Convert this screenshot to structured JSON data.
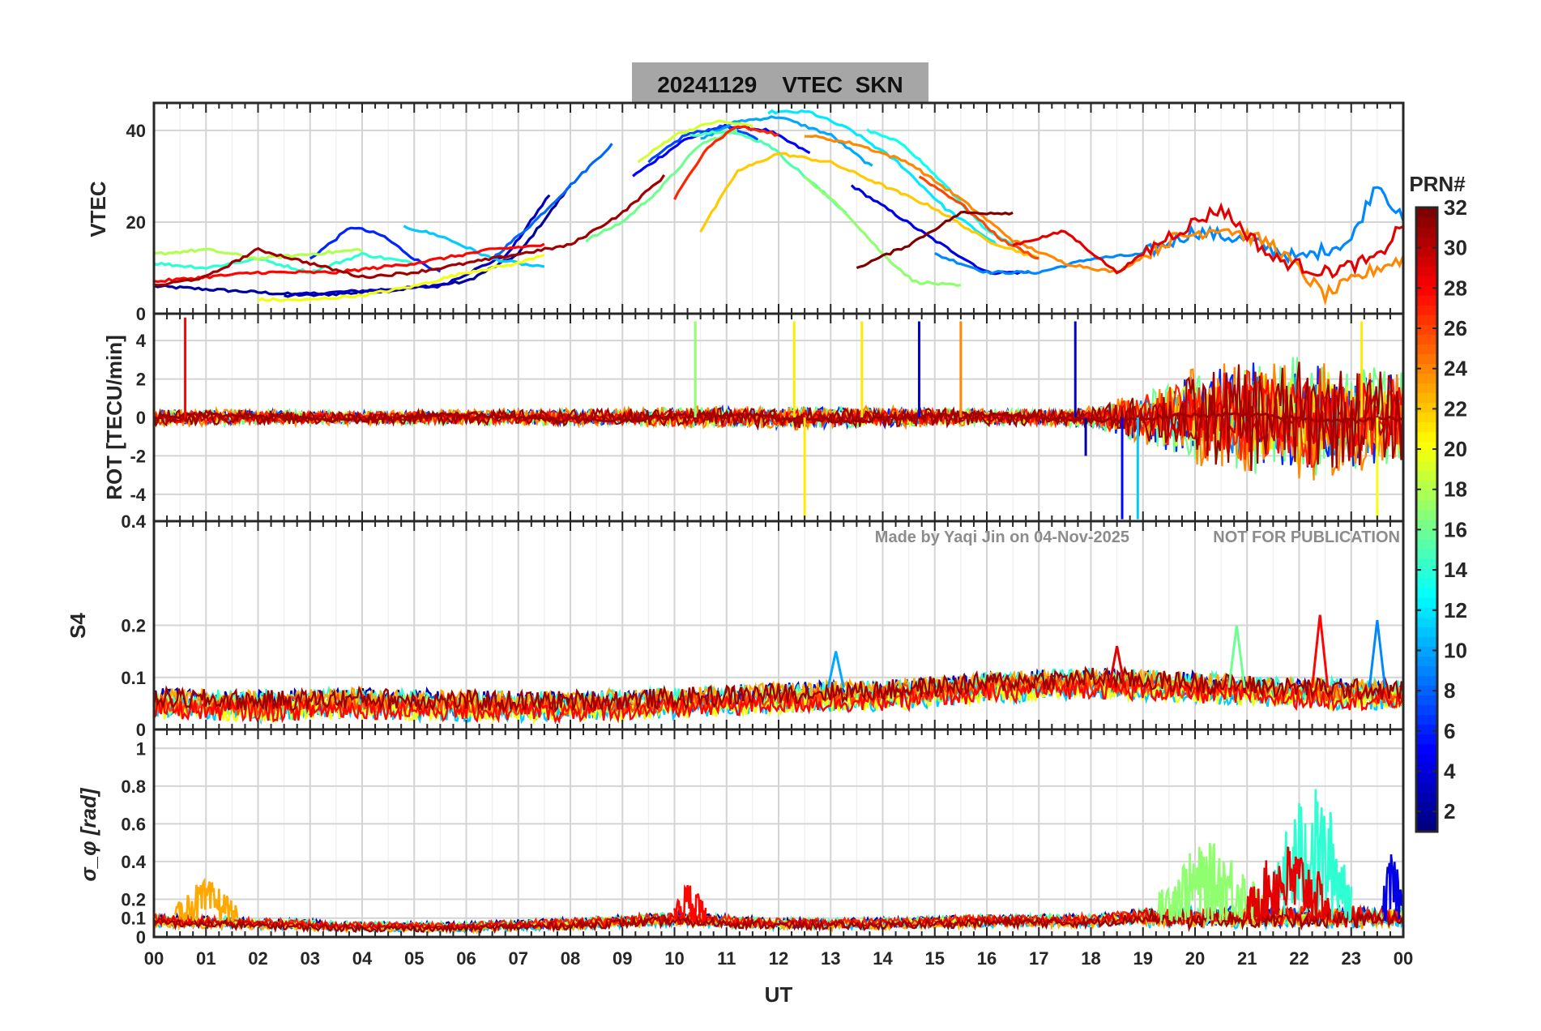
{
  "title": "20241129    VTEC  SKN",
  "watermark_left": "Made by Yaqi Jin on 04-Nov-2025",
  "watermark_right": "NOT FOR PUBLICATION",
  "colors": {
    "title_bg": "#a6a6a6",
    "grid": "#d4d4d4",
    "axis": "#262626"
  },
  "chart_data": {
    "type": "line",
    "shared_x": {
      "label": "UT",
      "range": [
        0,
        24
      ],
      "ticks": [
        0,
        1,
        2,
        3,
        4,
        5,
        6,
        7,
        8,
        9,
        10,
        11,
        12,
        13,
        14,
        15,
        16,
        17,
        18,
        19,
        20,
        21,
        22,
        23,
        24
      ],
      "tick_labels": [
        "00",
        "01",
        "02",
        "03",
        "04",
        "05",
        "06",
        "07",
        "08",
        "09",
        "10",
        "11",
        "12",
        "13",
        "14",
        "15",
        "16",
        "17",
        "18",
        "19",
        "20",
        "21",
        "22",
        "23",
        "00"
      ]
    },
    "colorbar": {
      "label": "PRN#",
      "range": [
        1,
        32
      ],
      "ticks": [
        2,
        4,
        6,
        8,
        10,
        12,
        14,
        16,
        18,
        20,
        22,
        24,
        26,
        28,
        30,
        32
      ],
      "colormap": "jet"
    },
    "panels": [
      {
        "id": "vtec",
        "ylabel": "VTEC",
        "ylim": [
          0,
          46
        ],
        "yticks": [
          20,
          40
        ],
        "ytick_labels": [
          "20",
          "40"
        ],
        "series": [
          {
            "prn": 2,
            "x": [
              0,
              1.5,
              3,
              4.5,
              6,
              7,
              8
            ],
            "y": [
              6,
              5,
              4,
              5,
              7,
              13,
              28
            ]
          },
          {
            "prn": 3,
            "x": [
              2.5,
              4,
              5.5,
              6.8,
              7.6
            ],
            "y": [
              4,
              5,
              6,
              13,
              26
            ]
          },
          {
            "prn": 5,
            "x": [
              9.2,
              10.2,
              11,
              11.8,
              12.6
            ],
            "y": [
              30,
              38,
              41,
              40,
              35
            ]
          },
          {
            "prn": 4,
            "x": [
              13.4,
              14.2,
              15,
              16,
              16.8
            ],
            "y": [
              28,
              22,
              16,
              9,
              9
            ]
          },
          {
            "prn": 6,
            "x": [
              3,
              3.8,
              4.4,
              5,
              5.5
            ],
            "y": [
              12,
              19,
              17,
              12,
              9
            ]
          },
          {
            "prn": 7,
            "x": [
              9.5,
              10.2,
              11,
              11.6
            ],
            "y": [
              33,
              39,
              41,
              38
            ]
          },
          {
            "prn": 8,
            "x": [
              6.5,
              7.3,
              8,
              8.8
            ],
            "y": [
              12,
              20,
              28,
              37
            ]
          },
          {
            "prn": 9,
            "x": [
              15,
              16,
              17,
              18,
              19,
              20,
              21,
              22,
              23,
              23.5,
              24
            ],
            "y": [
              13,
              9,
              9,
              12,
              13,
              18,
              16,
              12,
              16,
              29,
              20
            ]
          },
          {
            "prn": 10,
            "x": [
              10.5,
              11.2,
              12,
              13,
              13.8
            ],
            "y": [
              38,
              42,
              43,
              39,
              32
            ]
          },
          {
            "prn": 11,
            "x": [
              4.8,
              5.5,
              6.5,
              7.5
            ],
            "y": [
              19,
              17,
              12,
              10
            ]
          },
          {
            "prn": 12,
            "x": [
              11.8,
              12.6,
              13.4,
              14.3,
              15.2,
              16.2
            ],
            "y": [
              44,
              44,
              40,
              33,
              23,
              15
            ]
          },
          {
            "prn": 13,
            "x": [
              13.7,
              14.4,
              15.2,
              16,
              17
            ],
            "y": [
              40,
              37,
              28,
              18,
              12
            ]
          },
          {
            "prn": 14,
            "x": [
              0,
              1,
              2,
              3,
              4,
              5
            ],
            "y": [
              11,
              10,
              12,
              9,
              13,
              11
            ]
          },
          {
            "prn": 15,
            "x": [
              10.3,
              11,
              11.8,
              12.5,
              13.3
            ],
            "y": [
              39,
              40,
              37,
              30,
              22
            ]
          },
          {
            "prn": 16,
            "x": [
              8.3,
              9,
              9.7,
              10.5,
              11.2
            ],
            "y": [
              16,
              20,
              27,
              37,
              40
            ]
          },
          {
            "prn": 17,
            "x": [
              12.5,
              13.3,
              14,
              14.6,
              15.5
            ],
            "y": [
              30,
              22,
              13,
              7,
              6
            ]
          },
          {
            "prn": 18,
            "x": [
              0,
              1,
              2,
              3,
              4
            ],
            "y": [
              13,
              14,
              12,
              13,
              14
            ]
          },
          {
            "prn": 19,
            "x": [
              9.3,
              10,
              10.8,
              11.5
            ],
            "y": [
              33,
              39,
              42,
              41
            ]
          },
          {
            "prn": 20,
            "x": [
              2,
              3,
              4,
              5,
              6,
              7,
              7.5
            ],
            "y": [
              3,
              3,
              4,
              6,
              9,
              11,
              13
            ]
          },
          {
            "prn": 22,
            "x": [
              10.5,
              11.2,
              12,
              13,
              14,
              15,
              16,
              17
            ],
            "y": [
              18,
              31,
              35,
              33,
              28,
              23,
              16,
              12
            ]
          },
          {
            "prn": 24,
            "x": [
              12.5,
              13.5,
              14.5,
              15.5,
              16.5,
              17.5,
              18.5,
              19.5,
              20.5,
              21.5,
              22.5,
              23.5,
              24
            ],
            "y": [
              39,
              37,
              33,
              25,
              16,
              11,
              9,
              16,
              19,
              15,
              4,
              10,
              12
            ]
          },
          {
            "prn": 26,
            "x": [
              14.7,
              15.5,
              16.3,
              17
            ],
            "y": [
              30,
              24,
              16,
              12
            ]
          },
          {
            "prn": 28,
            "x": [
              0,
              1,
              2,
              3.5,
              5,
              6.5,
              7.5
            ],
            "y": [
              7,
              8,
              9,
              9,
              11,
              14,
              15
            ]
          },
          {
            "prn": 27,
            "x": [
              10,
              10.6,
              11.2,
              12
            ],
            "y": [
              25,
              36,
              41,
              39
            ]
          },
          {
            "prn": 29,
            "x": [
              16.5,
              17.5,
              18.5,
              19.5,
              20.5,
              21.5,
              22.5,
              23.5,
              24
            ],
            "y": [
              15,
              18,
              9,
              17,
              23,
              12,
              9,
              12,
              20
            ]
          },
          {
            "prn": 31,
            "x": [
              0,
              1,
              2,
              3,
              4,
              5,
              6,
              7,
              8,
              9,
              9.8
            ],
            "y": [
              6,
              8,
              14,
              11,
              8,
              9,
              11,
              13,
              15,
              22,
              30
            ]
          },
          {
            "prn": 32,
            "x": [
              13.5,
              14.5,
              15.5,
              16.5
            ],
            "y": [
              10,
              15,
              22,
              22
            ]
          }
        ]
      },
      {
        "id": "rot",
        "ylabel": "ROT [TECU/min]",
        "ylim": [
          -5.4,
          5.4
        ],
        "yticks": [
          -4,
          -2,
          0,
          2,
          4
        ],
        "ytick_labels": [
          "-4",
          "-2",
          "0",
          "2",
          "4"
        ],
        "top_label": "0",
        "trend": {
          "x": [
            0,
            4,
            8,
            12,
            16,
            18,
            19,
            20,
            21,
            22,
            23,
            24
          ],
          "amplitude": [
            0.5,
            0.4,
            0.5,
            0.7,
            0.5,
            0.6,
            1.5,
            2.8,
            3.5,
            3.6,
            3.2,
            2.8
          ]
        },
        "spikes": [
          {
            "prn": 28,
            "x": 0.6,
            "y": 5.2
          },
          {
            "prn": 17,
            "x": 10.4,
            "y": 5.0
          },
          {
            "prn": 21,
            "x": 12.3,
            "y": 5.0
          },
          {
            "prn": 21,
            "x": 12.5,
            "y": -5.3
          },
          {
            "prn": 21,
            "x": 13.6,
            "y": 5.0
          },
          {
            "prn": 4,
            "x": 14.7,
            "y": 5.0
          },
          {
            "prn": 24,
            "x": 15.5,
            "y": 5.0
          },
          {
            "prn": 3,
            "x": 17.7,
            "y": 5.0
          },
          {
            "prn": 2,
            "x": 17.9,
            "y": -2.0
          },
          {
            "prn": 5,
            "x": 18.6,
            "y": -5.3
          },
          {
            "prn": 11,
            "x": 18.9,
            "y": -5.3
          },
          {
            "prn": 21,
            "x": 23.2,
            "y": 5.0
          },
          {
            "prn": 20,
            "x": 23.5,
            "y": -5.3
          }
        ]
      },
      {
        "id": "s4",
        "ylabel": "S4",
        "ylim": [
          0,
          0.4
        ],
        "yticks": [
          0,
          0.1,
          0.2
        ],
        "ytick_labels": [
          "0",
          "0.1",
          "0.2"
        ],
        "top_label": "0.4",
        "baseline": {
          "x": [
            0,
            2,
            4,
            6,
            8,
            10,
            12,
            14,
            16,
            18,
            20,
            22,
            24
          ],
          "y": [
            0.06,
            0.055,
            0.06,
            0.055,
            0.055,
            0.06,
            0.07,
            0.075,
            0.09,
            0.1,
            0.09,
            0.08,
            0.075
          ]
        },
        "peaks": [
          {
            "prn": 28,
            "x": 22.4,
            "y": 0.22
          },
          {
            "prn": 16,
            "x": 20.8,
            "y": 0.2
          },
          {
            "prn": 9,
            "x": 23.5,
            "y": 0.21
          },
          {
            "prn": 10,
            "x": 13.1,
            "y": 0.15
          },
          {
            "prn": 29,
            "x": 18.5,
            "y": 0.16
          }
        ]
      },
      {
        "id": "sigma_phi",
        "ylabel": "σ_φ [rad]",
        "ylim": [
          0,
          1.1
        ],
        "yticks": [
          0,
          0.1,
          0.2,
          0.4,
          0.6,
          0.8,
          1.0
        ],
        "ytick_labels": [
          "0",
          "0.1",
          "0.2",
          "0.4",
          "0.6",
          "0.8",
          "1"
        ],
        "baseline": {
          "x": [
            0,
            2,
            4,
            6,
            8,
            10,
            12,
            14,
            16,
            18,
            19,
            20,
            21,
            22,
            23,
            24
          ],
          "y": [
            0.12,
            0.1,
            0.08,
            0.08,
            0.1,
            0.13,
            0.1,
            0.1,
            0.12,
            0.12,
            0.15,
            0.22,
            0.3,
            0.45,
            0.42,
            0.2
          ]
        },
        "bursts": [
          {
            "prn": 14,
            "x0": 21.5,
            "x1": 23.0,
            "peak": 0.8
          },
          {
            "prn": 17,
            "x0": 19.3,
            "x1": 21.3,
            "peak": 0.5
          },
          {
            "prn": 29,
            "x0": 21.0,
            "x1": 22.6,
            "peak": 0.5
          },
          {
            "prn": 28,
            "x0": 10.0,
            "x1": 10.6,
            "peak": 0.3
          },
          {
            "prn": 23,
            "x0": 0.4,
            "x1": 1.6,
            "peak": 0.3
          },
          {
            "prn": 4,
            "x0": 23.6,
            "x1": 24.0,
            "peak": 0.45
          }
        ]
      }
    ]
  }
}
